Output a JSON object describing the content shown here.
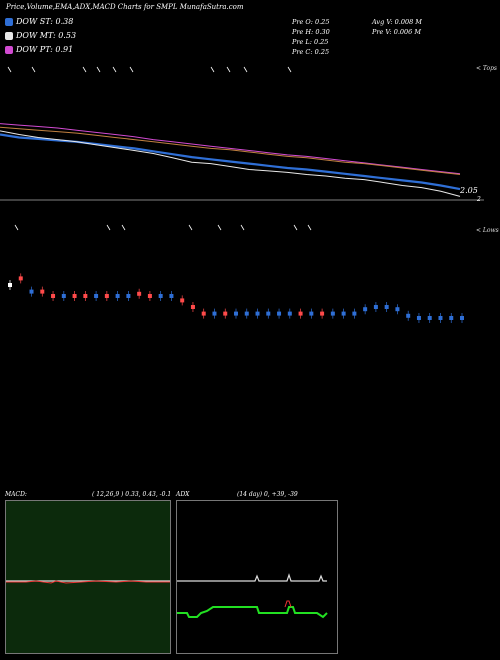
{
  "title": "Price,Volume,EMA,ADX,MACD Charts for SMPL MunafaSutra.com",
  "legend": [
    {
      "label": "DOW ST: 0.38",
      "color": "#2f6fd6"
    },
    {
      "label": "DOW MT: 0.53",
      "color": "#e8e8e8"
    },
    {
      "label": "DOW PT: 0.91",
      "color": "#d24bd2"
    }
  ],
  "stats": {
    "o": "Pre  O: 0.25",
    "h": "Pre  H: 0.30",
    "l": "Pre  L: 0.25",
    "c": "Pre  C: 0.25",
    "avgv": "Avg V: 0.008  M",
    "prev": "Pre  V: 0.006  M"
  },
  "panel_top_label": "< Tops",
  "panel_low_label": "< Lows",
  "price_right_label": "2.05",
  "price_right_small": "2",
  "macd": {
    "label": "MACD:",
    "params": "( 12,26,9 ) 0.33, 0.43, -0.1",
    "bg": "#0c2a0c"
  },
  "adx": {
    "label": "ADX",
    "params": "(14  day) 0, +39, -39",
    "bg": "#000000"
  },
  "chart_data": {
    "type": "line",
    "title": "Price,Volume,EMA,ADX,MACD Charts for SMPL MunafaSutra.com",
    "price_series": [
      {
        "color": "#2f6fd6",
        "values": [
          2.9,
          2.86,
          2.84,
          2.82,
          2.8,
          2.77,
          2.74,
          2.71,
          2.67,
          2.63,
          2.59,
          2.56,
          2.53,
          2.5,
          2.47,
          2.44,
          2.42,
          2.39,
          2.36,
          2.33,
          2.3,
          2.27,
          2.24,
          2.2,
          2.15
        ]
      },
      {
        "color": "#e8e8e8",
        "values": [
          2.95,
          2.9,
          2.86,
          2.83,
          2.8,
          2.76,
          2.72,
          2.68,
          2.64,
          2.58,
          2.52,
          2.5,
          2.46,
          2.42,
          2.4,
          2.38,
          2.35,
          2.33,
          2.3,
          2.28,
          2.24,
          2.2,
          2.17,
          2.12,
          2.05
        ]
      },
      {
        "color": "#d24bd2",
        "values": [
          3.05,
          3.03,
          3.01,
          2.99,
          2.96,
          2.93,
          2.9,
          2.87,
          2.83,
          2.8,
          2.77,
          2.74,
          2.71,
          2.68,
          2.65,
          2.62,
          2.6,
          2.57,
          2.54,
          2.51,
          2.48,
          2.45,
          2.42,
          2.39,
          2.36
        ]
      },
      {
        "color": "#c08040",
        "values": [
          3.0,
          2.98,
          2.96,
          2.94,
          2.92,
          2.89,
          2.86,
          2.83,
          2.8,
          2.77,
          2.74,
          2.71,
          2.69,
          2.66,
          2.63,
          2.6,
          2.58,
          2.55,
          2.52,
          2.5,
          2.47,
          2.44,
          2.41,
          2.38,
          2.35
        ]
      }
    ],
    "candles": [
      {
        "y": 0.15,
        "c": "#ffffff"
      },
      {
        "y": 0.12,
        "c": "#ff4a4a"
      },
      {
        "y": 0.18,
        "c": "#2f6fd6"
      },
      {
        "y": 0.18,
        "c": "#ff4a4a"
      },
      {
        "y": 0.2,
        "c": "#ff4a4a"
      },
      {
        "y": 0.2,
        "c": "#2f6fd6"
      },
      {
        "y": 0.2,
        "c": "#ff4a4a"
      },
      {
        "y": 0.2,
        "c": "#ff4a4a"
      },
      {
        "y": 0.2,
        "c": "#2f6fd6"
      },
      {
        "y": 0.2,
        "c": "#ff4a4a"
      },
      {
        "y": 0.2,
        "c": "#2f6fd6"
      },
      {
        "y": 0.2,
        "c": "#2f6fd6"
      },
      {
        "y": 0.19,
        "c": "#ff4a4a"
      },
      {
        "y": 0.2,
        "c": "#ff4a4a"
      },
      {
        "y": 0.2,
        "c": "#2f6fd6"
      },
      {
        "y": 0.2,
        "c": "#2f6fd6"
      },
      {
        "y": 0.22,
        "c": "#ff4a4a"
      },
      {
        "y": 0.25,
        "c": "#ff4a4a"
      },
      {
        "y": 0.28,
        "c": "#ff4a4a"
      },
      {
        "y": 0.28,
        "c": "#2f6fd6"
      },
      {
        "y": 0.28,
        "c": "#ff4a4a"
      },
      {
        "y": 0.28,
        "c": "#2f6fd6"
      },
      {
        "y": 0.28,
        "c": "#2f6fd6"
      },
      {
        "y": 0.28,
        "c": "#2f6fd6"
      },
      {
        "y": 0.28,
        "c": "#2f6fd6"
      },
      {
        "y": 0.28,
        "c": "#2f6fd6"
      },
      {
        "y": 0.28,
        "c": "#2f6fd6"
      },
      {
        "y": 0.28,
        "c": "#ff4a4a"
      },
      {
        "y": 0.28,
        "c": "#2f6fd6"
      },
      {
        "y": 0.28,
        "c": "#ff4a4a"
      },
      {
        "y": 0.28,
        "c": "#2f6fd6"
      },
      {
        "y": 0.28,
        "c": "#2f6fd6"
      },
      {
        "y": 0.28,
        "c": "#2f6fd6"
      },
      {
        "y": 0.26,
        "c": "#2f6fd6"
      },
      {
        "y": 0.25,
        "c": "#2f6fd6"
      },
      {
        "y": 0.25,
        "c": "#2f6fd6"
      },
      {
        "y": 0.26,
        "c": "#2f6fd6"
      },
      {
        "y": 0.29,
        "c": "#2f6fd6"
      },
      {
        "y": 0.3,
        "c": "#2f6fd6"
      },
      {
        "y": 0.3,
        "c": "#2f6fd6"
      },
      {
        "y": 0.3,
        "c": "#2f6fd6"
      },
      {
        "y": 0.3,
        "c": "#2f6fd6"
      },
      {
        "y": 0.3,
        "c": "#2f6fd6"
      }
    ],
    "macd": {
      "macd": 0.33,
      "signal": 0.43,
      "histogram": -0.1
    },
    "adx": {
      "adx": 0,
      "plus_di": 39,
      "minus_di": 39
    }
  }
}
